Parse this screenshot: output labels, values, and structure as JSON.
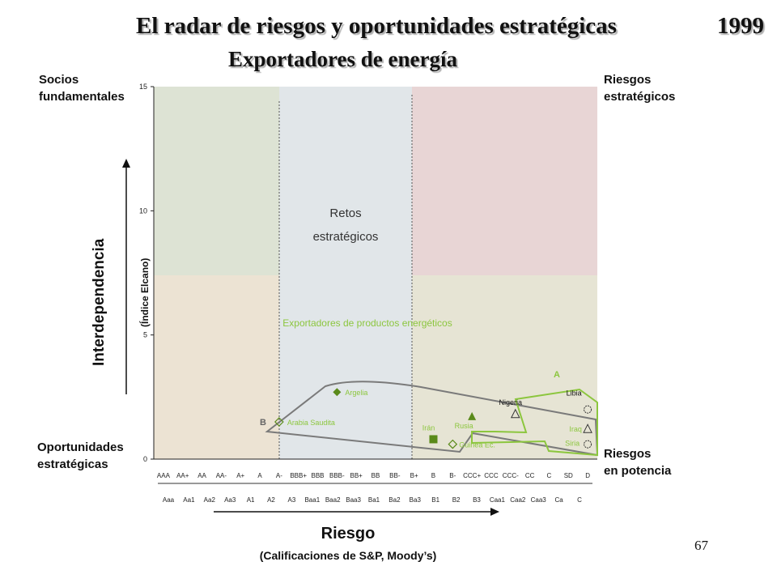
{
  "slide": {
    "title": "El radar de riesgos y oportunidades estratégicas",
    "year": "1999",
    "subtitle": "Exportadores de energía",
    "page_number": "67"
  },
  "corners": {
    "top_left_1": "Socios",
    "top_left_2": "fundamentales",
    "top_right_1": "Riesgos",
    "top_right_2": "estratégicos",
    "bottom_left_1": "Oportunidades",
    "bottom_left_2": "estratégicas",
    "bottom_right_1": "Riesgos",
    "bottom_right_2": "en potencia"
  },
  "axes": {
    "ylabel": "Interdependencia",
    "ysub": "(Índice Elcano)",
    "xlabel": "Riesgo",
    "xsub": "(Calificaciones de S&P, Moody’s)"
  },
  "chart_data": {
    "type": "scatter",
    "ylim": [
      0,
      15
    ],
    "yticks": [
      "0",
      "5",
      "10",
      "15"
    ],
    "x_categories_sp": [
      "AAA",
      "AA+",
      "AA",
      "AA-",
      "A+",
      "A",
      "A-",
      "BBB+",
      "BBB",
      "BBB-",
      "BB+",
      "BB",
      "BB-",
      "B+",
      "B",
      "B-",
      "CCC+",
      "CCC",
      "CCC-",
      "CC",
      "C",
      "SD",
      "D"
    ],
    "x_categories_moodys": [
      "Aaa",
      "Aa1",
      "Aa2",
      "Aa3",
      "A1",
      "A2",
      "A3",
      "Baa1",
      "Baa2",
      "Baa3",
      "Ba1",
      "Ba2",
      "Ba3",
      "B1",
      "B2",
      "B3",
      "Caa1",
      "Caa2",
      "Caa3",
      "Ca",
      "C"
    ],
    "zone_label": "Retos estratégicos",
    "zone_label_1": "Retos",
    "zone_label_2": "estratégicos",
    "group_label": "Exportadores de productos energéticos",
    "group_marker_A": "A",
    "group_marker_B": "B",
    "colors": {
      "partners": "#dde3d4",
      "challenges": "#e1e6e9",
      "strategic_risks": "#e8d5d5",
      "opportunities": "#ece3d3",
      "potential_risks": "#e6e4d4",
      "group_green": "#8cc63e",
      "hull_gray": "#7a7a7a",
      "point_green": "#5a8a1a"
    },
    "points": [
      {
        "name": "Argelia",
        "rating": "BBB-",
        "y": 2.7,
        "marker": "diamond-filled"
      },
      {
        "name": "Arabia Saudita",
        "rating": "A-",
        "y": 1.5,
        "marker": "diamond-open"
      },
      {
        "name": "Irán",
        "rating": "B",
        "y": 0.8,
        "marker": "square-filled"
      },
      {
        "name": "Guinea Ec.",
        "rating": "B-",
        "y": 0.6,
        "marker": "diamond-open"
      },
      {
        "name": "Rusia",
        "rating": "CCC+",
        "y": 1.7,
        "marker": "triangle-filled"
      },
      {
        "name": "Nigeria",
        "rating": "CCC-",
        "y": 1.8,
        "marker": "triangle-open"
      },
      {
        "name": "Libia",
        "rating": "D",
        "y": 2.0,
        "marker": "circle-open"
      },
      {
        "name": "Iraq",
        "rating": "D",
        "y": 1.2,
        "marker": "triangle-open"
      },
      {
        "name": "Siria",
        "rating": "D",
        "y": 0.6,
        "marker": "circle-open"
      }
    ]
  }
}
